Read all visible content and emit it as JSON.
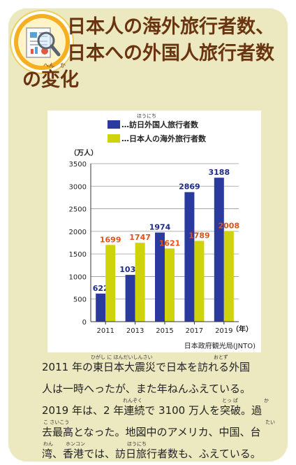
{
  "title": {
    "line1": "日本人の海外旅行者数、",
    "line2": "日本への外国人旅行者数",
    "line3": "の変化",
    "ruby_henka": "へん　か"
  },
  "icon": {
    "name": "magnifier-document-icon"
  },
  "colors": {
    "card_bg": "#ece8c0",
    "title": "#6a3410",
    "foreign_visitors": "#2a3a9e",
    "japanese_travelers": "#cfd40a",
    "foreign_label": "#1e2a8c",
    "japanese_label": "#e2511a"
  },
  "chart_data": {
    "type": "bar",
    "categories": [
      "2011",
      "2013",
      "2015",
      "2017",
      "2019"
    ],
    "x_unit": "（年）",
    "y_unit": "（万人）",
    "ylim": [
      0,
      3500
    ],
    "yticks": [
      "0",
      "500",
      "1000",
      "1500",
      "2000",
      "2500",
      "3000",
      "3500"
    ],
    "grid": true,
    "legend_position": "top",
    "series": [
      {
        "name": "…訪日外国人旅行者数",
        "ruby": "ほうにち",
        "values": [
          622,
          1036,
          1974,
          2869,
          3188
        ]
      },
      {
        "name": "…日本人の海外旅行者数",
        "values": [
          1699,
          1747,
          1621,
          1789,
          2008
        ]
      }
    ],
    "source": "日本政府観光局(JNTO)"
  },
  "body": {
    "lines": [
      "2011 年の東日本大震災で日本を訪れる外国",
      "人は一時へったが、また年ねんふえている。",
      "2019 年は、2 年連続で 3100 万人を突破。過",
      "去最高となった。地図中のアメリカ、中国、台",
      "湾、香港では、訪日旅行者数も、ふえている。"
    ],
    "ruby": {
      "higashinihondaishinsai": "ひがし に ほんだいしんさい",
      "otozu": "おとず",
      "renzoku": "れんぞく",
      "toppa": "とっ ぱ",
      "ka": "か",
      "kosaikou": "こ さいこう",
      "tai": "たい",
      "wan": "わん",
      "honkon": "ホンコン",
      "hounichi": "ほうにち"
    }
  }
}
